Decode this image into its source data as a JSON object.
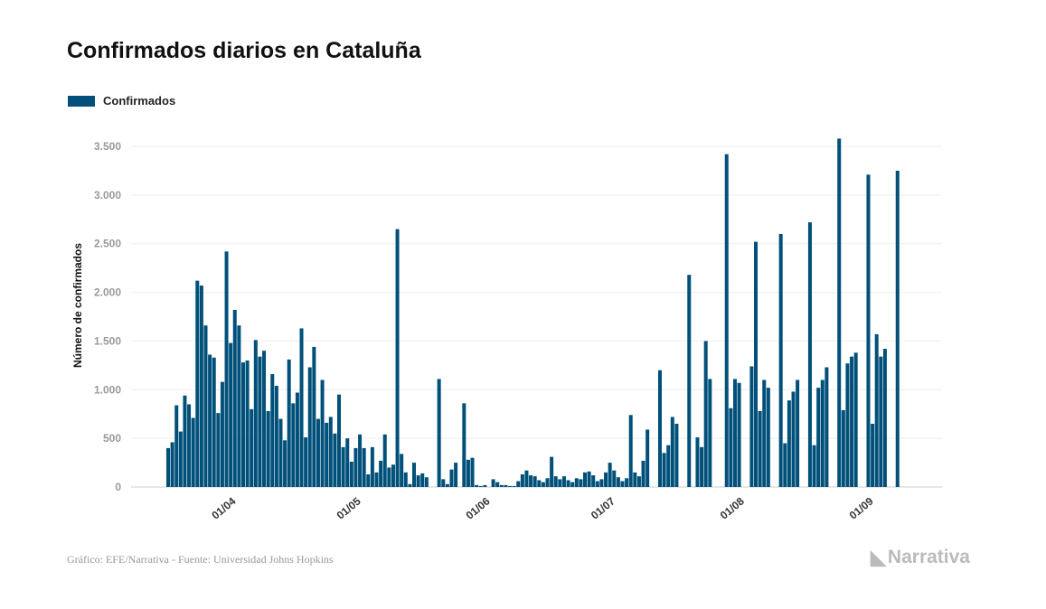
{
  "chart_data": {
    "type": "bar",
    "title": "Confirmados diarios en Cataluña",
    "ylabel": "Número de confirmados",
    "xlabel": "",
    "ylim": [
      0,
      3500
    ],
    "yticks": [
      0,
      500,
      1000,
      1500,
      2000,
      2500,
      3000,
      3500
    ],
    "ytick_labels": [
      "0",
      "500",
      "1.000",
      "1.500",
      "2.000",
      "2.500",
      "3.000",
      "3.500"
    ],
    "xtick_labels": [
      "01/04",
      "01/05",
      "01/06",
      "01/07",
      "01/08",
      "01/09"
    ],
    "xtick_day_index": [
      15,
      45,
      76,
      106,
      137,
      168
    ],
    "grid": true,
    "legend": {
      "position": "top-left",
      "entries": [
        "Confirmados"
      ]
    },
    "series": [
      {
        "name": "Confirmados",
        "color": "#00507a",
        "values": [
          400,
          460,
          840,
          570,
          940,
          850,
          710,
          2120,
          2070,
          1660,
          1360,
          1330,
          760,
          1080,
          2420,
          1480,
          1820,
          1660,
          1280,
          1300,
          800,
          1510,
          1340,
          1400,
          780,
          1160,
          1040,
          700,
          480,
          1310,
          860,
          970,
          1630,
          510,
          1230,
          1440,
          700,
          1100,
          660,
          720,
          550,
          950,
          410,
          500,
          260,
          400,
          540,
          400,
          130,
          410,
          150,
          270,
          540,
          200,
          230,
          2650,
          340,
          150,
          30,
          250,
          120,
          140,
          100,
          0,
          0,
          1110,
          80,
          30,
          180,
          250,
          0,
          860,
          280,
          300,
          20,
          10,
          20,
          0,
          80,
          50,
          20,
          20,
          10,
          10,
          60,
          130,
          170,
          120,
          110,
          70,
          50,
          90,
          310,
          110,
          80,
          110,
          70,
          50,
          90,
          80,
          150,
          160,
          120,
          60,
          80,
          150,
          250,
          170,
          100,
          60,
          90,
          740,
          150,
          110,
          270,
          590,
          0,
          0,
          1200,
          350,
          430,
          720,
          650,
          0,
          0,
          2180,
          0,
          510,
          410,
          1500,
          1110,
          0,
          0,
          0,
          3420,
          810,
          1110,
          1070,
          0,
          0,
          1240,
          2520,
          780,
          1100,
          1020,
          0,
          0,
          2600,
          450,
          890,
          980,
          1100,
          0,
          0,
          2720,
          430,
          1020,
          1100,
          1230,
          0,
          0,
          3580,
          790,
          1270,
          1340,
          1380,
          0,
          0,
          3210,
          650,
          1570,
          1340,
          1420,
          0,
          0,
          3250
        ]
      }
    ]
  },
  "footer": "Gráfico: EFE/Narrativa - Fuente: Universidad Johns Hopkins",
  "logo": "Narrativa"
}
